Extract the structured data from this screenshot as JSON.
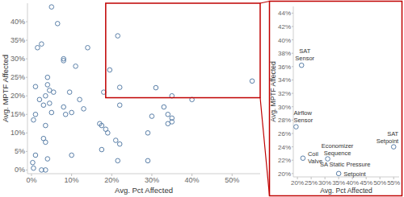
{
  "chart_data": [
    {
      "type": "scatter",
      "x": [
        0.5,
        0.3,
        1,
        0.5,
        1,
        1,
        1.5,
        2.5,
        2,
        3.5,
        2.5,
        3.5,
        3,
        3.5,
        4,
        4.5,
        4,
        4,
        5.5,
        4.5,
        3,
        5,
        3.5,
        5,
        6.5,
        8,
        8,
        8,
        8.5,
        9.5,
        10,
        10,
        11,
        12,
        13,
        14,
        17,
        17.5,
        17.5,
        18,
        18.5,
        19,
        19.5,
        21.5,
        22,
        22,
        21,
        22,
        21.5,
        29,
        29,
        30,
        31,
        33,
        34,
        34,
        35,
        35,
        35,
        40,
        55
      ],
      "values": [
        0.5,
        2,
        4,
        13.5,
        15,
        22.5,
        33,
        34,
        19,
        20,
        0,
        0,
        8.5,
        7.5,
        3,
        21.5,
        23,
        25,
        21,
        18,
        17.5,
        15.5,
        12,
        44,
        39.5,
        30,
        29.5,
        17,
        15,
        21,
        15.5,
        4,
        28,
        19,
        16.5,
        33,
        12.5,
        12,
        5.5,
        21,
        11,
        10,
        27,
        36.2,
        22.3,
        17.5,
        8,
        7,
        2.5,
        10,
        2.5,
        14.5,
        22.2,
        17,
        15,
        12.5,
        20,
        14,
        13,
        19,
        24
      ],
      "xlim": [
        -1,
        57
      ],
      "ylim": [
        -1,
        45
      ],
      "xticks": [
        {
          "value": 0,
          "label": "0%"
        },
        {
          "value": 10,
          "label": "10%"
        },
        {
          "value": 20,
          "label": "20%"
        },
        {
          "value": 30,
          "label": "30%"
        },
        {
          "value": 40,
          "label": "40%"
        },
        {
          "value": 50,
          "label": "50%"
        }
      ],
      "yticks": [
        {
          "value": 0,
          "label": "0%"
        },
        {
          "value": 5,
          "label": "5%"
        },
        {
          "value": 10,
          "label": "10%"
        },
        {
          "value": 15,
          "label": "15%"
        },
        {
          "value": 20,
          "label": "20%"
        },
        {
          "value": 25,
          "label": "25%"
        },
        {
          "value": 30,
          "label": "30%"
        },
        {
          "value": 35,
          "label": "35%"
        },
        {
          "value": 40,
          "label": "40%"
        }
      ],
      "xlabel": "Avg. Pct Affected",
      "ylabel": "Avg. MPTF Affected",
      "color": "#5a7fa8",
      "marker": "circle-open",
      "grid": false
    },
    {
      "type": "scatter",
      "x": [
        21.5,
        19.5,
        22,
        31,
        35,
        55
      ],
      "values": [
        36.2,
        27,
        22.3,
        22.2,
        20,
        24
      ],
      "point_labels": [
        [
          "SAT",
          "Sensor"
        ],
        [
          "Airflow",
          "Sensor"
        ],
        [
          "Coil",
          "Valve"
        ],
        [
          "Economizer",
          "Sequence"
        ],
        [
          "SA Static Pressure",
          "Setpoint"
        ],
        [
          "SAT",
          "Setpoint"
        ]
      ],
      "xlim": [
        18.5,
        57
      ],
      "ylim": [
        19.5,
        45
      ],
      "xticks": [
        {
          "value": 20,
          "label": "20%"
        },
        {
          "value": 25,
          "label": "25%"
        },
        {
          "value": 30,
          "label": "30%"
        },
        {
          "value": 35,
          "label": "35%"
        },
        {
          "value": 40,
          "label": "40%"
        },
        {
          "value": 45,
          "label": "45%"
        },
        {
          "value": 50,
          "label": "50%"
        },
        {
          "value": 55,
          "label": "55%"
        }
      ],
      "yticks": [
        {
          "value": 20,
          "label": "20%"
        },
        {
          "value": 22,
          "label": "22%"
        },
        {
          "value": 24,
          "label": "24%"
        },
        {
          "value": 26,
          "label": "26%"
        },
        {
          "value": 28,
          "label": "28%"
        },
        {
          "value": 30,
          "label": "30%"
        },
        {
          "value": 32,
          "label": "32%"
        },
        {
          "value": 34,
          "label": "34%"
        },
        {
          "value": 36,
          "label": "36%"
        },
        {
          "value": 38,
          "label": "38%"
        },
        {
          "value": 40,
          "label": "40%"
        },
        {
          "value": 42,
          "label": "42%"
        },
        {
          "value": 44,
          "label": "44%"
        }
      ],
      "xlabel": "Avg. Pct Affected",
      "ylabel": "Avg. MPTF Affected",
      "color": "#5a7fa8",
      "marker": "circle-open",
      "grid": false
    }
  ]
}
